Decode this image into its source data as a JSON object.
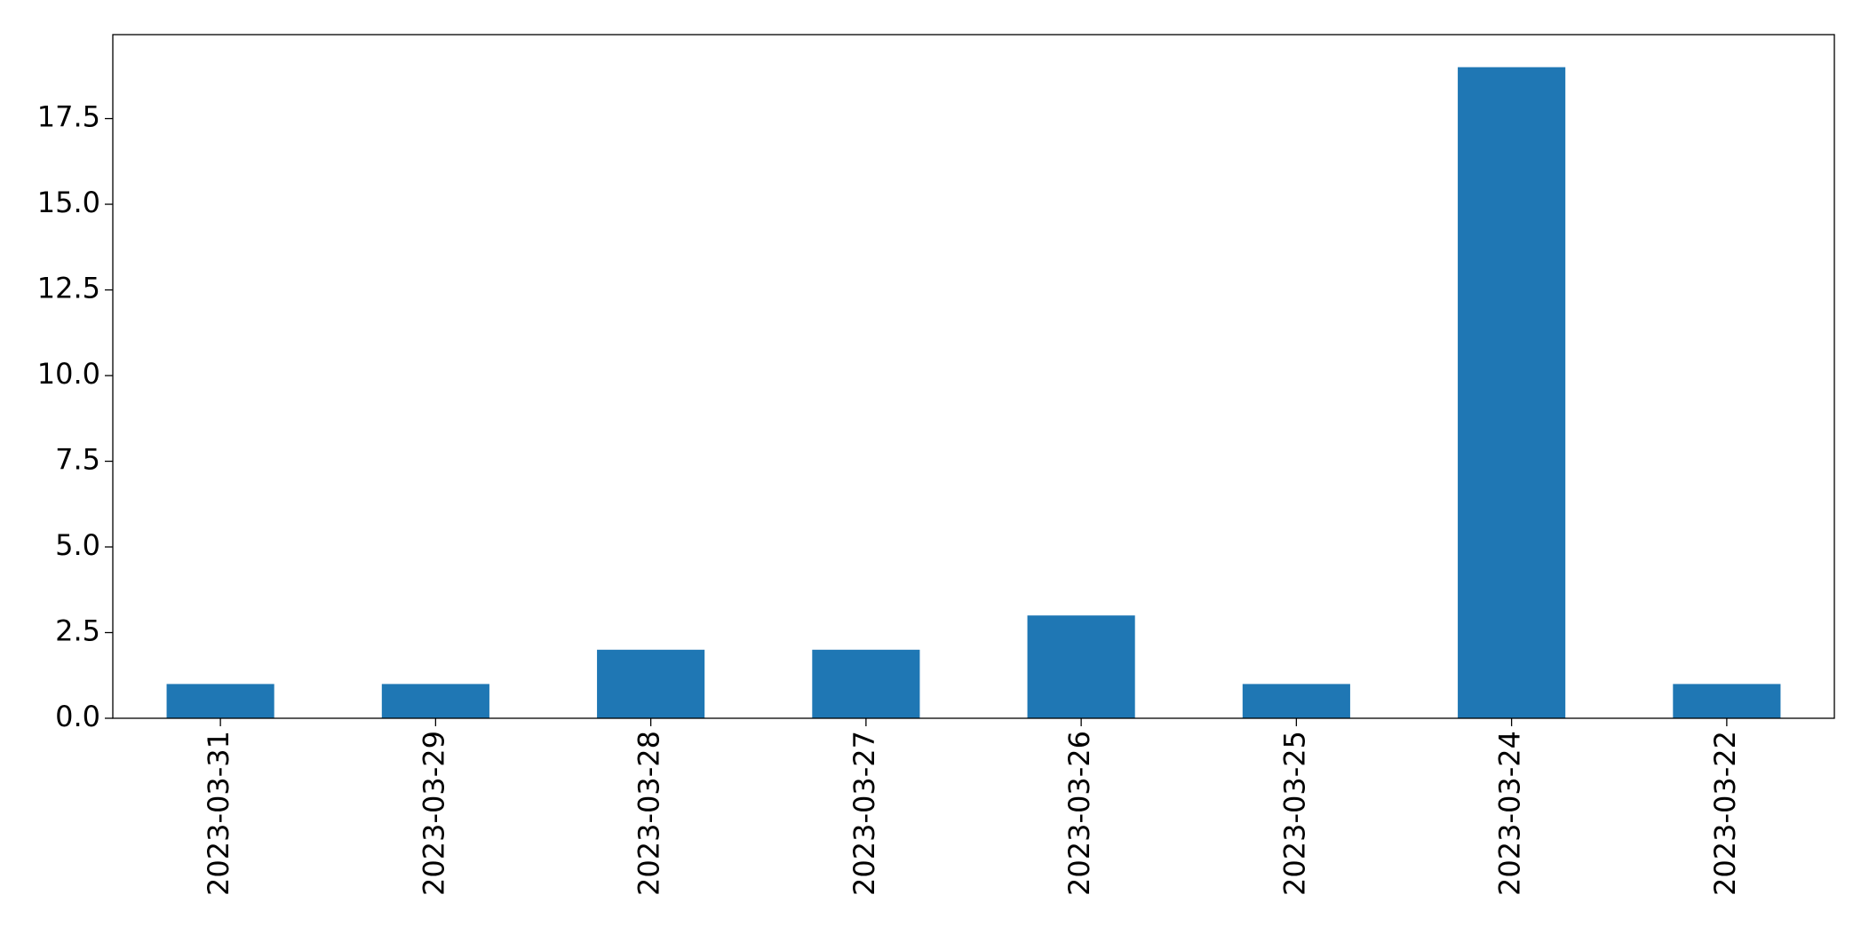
{
  "chart_data": {
    "type": "bar",
    "categories": [
      "2023-03-31",
      "2023-03-29",
      "2023-03-28",
      "2023-03-27",
      "2023-03-26",
      "2023-03-25",
      "2023-03-24",
      "2023-03-22"
    ],
    "values": [
      1,
      1,
      2,
      2,
      3,
      1,
      19,
      1
    ],
    "color": "#1f77b4",
    "ylim": [
      0,
      19.95
    ],
    "yticks": [
      {
        "value": 0,
        "label": "0.0"
      },
      2.5,
      {
        "value": 5,
        "label": "5.0"
      },
      7.5,
      {
        "value": 10,
        "label": "10.0"
      },
      12.5,
      {
        "value": 15,
        "label": "15.0"
      },
      17.5
    ],
    "grid": false
  }
}
